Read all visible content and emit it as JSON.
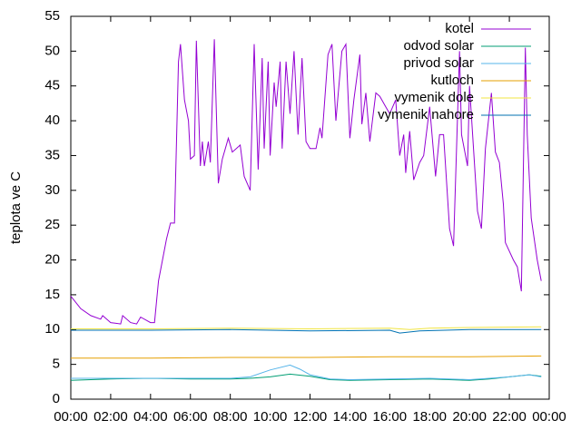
{
  "chart_data": {
    "type": "line",
    "ylabel": "teplota ve C",
    "xlim": [
      0,
      24
    ],
    "ylim": [
      0,
      55
    ],
    "xticks": [
      {
        "value": 0,
        "label": "00:00"
      },
      {
        "value": 2,
        "label": "02:00"
      },
      {
        "value": 4,
        "label": "04:00"
      },
      {
        "value": 6,
        "label": "06:00"
      },
      {
        "value": 8,
        "label": "08:00"
      },
      {
        "value": 10,
        "label": "10:00"
      },
      {
        "value": 12,
        "label": "12:00"
      },
      {
        "value": 14,
        "label": "14:00"
      },
      {
        "value": 16,
        "label": "16:00"
      },
      {
        "value": 18,
        "label": "18:00"
      },
      {
        "value": 20,
        "label": "20:00"
      },
      {
        "value": 22,
        "label": "22:00"
      },
      {
        "value": 24,
        "label": "00:00"
      }
    ],
    "yticks": [
      0,
      5,
      10,
      15,
      20,
      25,
      30,
      35,
      40,
      45,
      50,
      55
    ],
    "legend": "top-right",
    "series": [
      {
        "name": "kotel",
        "color": "#9400d3",
        "x": [
          0,
          0.5,
          1,
          1.5,
          1.6,
          2,
          2.5,
          2.6,
          3,
          3.3,
          3.5,
          4,
          4.2,
          4.4,
          4.8,
          5,
          5.2,
          5.4,
          5.5,
          5.7,
          5.9,
          6,
          6.2,
          6.3,
          6.5,
          6.6,
          6.7,
          6.9,
          7,
          7.2,
          7.4,
          7.6,
          7.9,
          8.1,
          8.3,
          8.5,
          8.7,
          9,
          9.2,
          9.4,
          9.6,
          9.7,
          9.9,
          10,
          10.2,
          10.3,
          10.5,
          10.6,
          10.8,
          11,
          11.2,
          11.4,
          11.6,
          11.8,
          12,
          12.3,
          12.5,
          12.6,
          12.9,
          13.1,
          13.3,
          13.6,
          13.8,
          14,
          14.2,
          14.5,
          14.6,
          14.8,
          15,
          15.3,
          15.5,
          15.8,
          16,
          16.3,
          16.5,
          16.7,
          16.8,
          17,
          17.2,
          17.5,
          17.7,
          18,
          18.3,
          18.5,
          18.7,
          18.9,
          19,
          19.2,
          19.5,
          19.6,
          19.9,
          20,
          20.2,
          20.4,
          20.6,
          20.8,
          21.1,
          21.3,
          21.5,
          21.7,
          21.8,
          22.2,
          22.4,
          22.6,
          22.8,
          22.9,
          23.1,
          23.4,
          23.6
        ],
        "values": [
          14.8,
          13,
          12,
          11.5,
          12,
          11,
          10.8,
          12,
          11,
          10.8,
          11.8,
          11,
          11,
          17,
          23,
          25.3,
          25.3,
          48.5,
          51,
          43,
          40,
          34.5,
          35,
          51.5,
          33.5,
          37,
          33.5,
          37,
          34,
          51.7,
          31,
          34.5,
          37.5,
          35.5,
          36,
          36.5,
          32,
          30,
          51,
          33,
          49,
          36,
          48.5,
          35,
          45.5,
          42,
          48.5,
          36,
          48.5,
          41,
          50,
          38,
          49,
          37,
          36,
          36,
          39,
          37.5,
          49.5,
          51,
          40,
          50,
          51,
          37.5,
          43,
          49.5,
          39.5,
          44,
          37,
          44,
          43.5,
          42,
          41,
          43,
          35,
          38,
          32.5,
          38.5,
          31.5,
          34,
          35,
          42,
          32,
          38,
          38,
          29,
          24.5,
          22,
          50,
          38,
          33.5,
          45,
          36,
          27,
          24.5,
          36,
          44,
          35.5,
          34,
          28,
          22.5,
          20,
          19,
          15.5,
          50.5,
          38,
          26,
          20,
          17
        ]
      },
      {
        "name": "odvod solar",
        "color": "#009e73",
        "x": [
          0,
          2,
          4,
          6,
          8,
          9,
          10,
          11,
          12,
          13,
          14,
          16,
          18,
          20,
          21,
          22,
          23,
          23.6
        ],
        "values": [
          2.7,
          2.9,
          3,
          2.9,
          2.9,
          3,
          3.2,
          3.6,
          3.3,
          2.8,
          2.7,
          2.8,
          2.9,
          2.7,
          2.9,
          3.2,
          3.5,
          3.3
        ]
      },
      {
        "name": "privod solar",
        "color": "#56b4e9",
        "x": [
          0,
          2,
          4,
          6,
          8,
          9,
          10,
          11,
          11.5,
          12,
          13,
          14,
          16,
          18,
          20,
          21,
          22,
          23,
          23.6
        ],
        "values": [
          3,
          3,
          3,
          3,
          3,
          3.2,
          4.2,
          4.9,
          4.3,
          3.5,
          2.9,
          2.8,
          2.9,
          3,
          2.8,
          3,
          3.2,
          3.5,
          3.2
        ]
      },
      {
        "name": "kutloch",
        "color": "#e69f00",
        "x": [
          0,
          4,
          8,
          12,
          16,
          20,
          23.6
        ],
        "values": [
          5.9,
          5.9,
          6,
          6,
          6.1,
          6.1,
          6.2
        ]
      },
      {
        "name": "vymenik dole",
        "color": "#f0e442",
        "x": [
          0,
          4,
          8,
          12,
          16,
          17,
          18,
          20,
          23.6
        ],
        "values": [
          10.1,
          10.1,
          10.2,
          10.1,
          10.2,
          10,
          10.2,
          10.3,
          10.4
        ]
      },
      {
        "name": "vymenik nahore",
        "color": "#0072b2",
        "x": [
          0,
          4,
          8,
          12,
          16,
          16.5,
          17.5,
          20,
          23.6
        ],
        "values": [
          9.9,
          9.9,
          10,
          9.8,
          9.9,
          9.5,
          9.8,
          10,
          10
        ]
      }
    ]
  }
}
